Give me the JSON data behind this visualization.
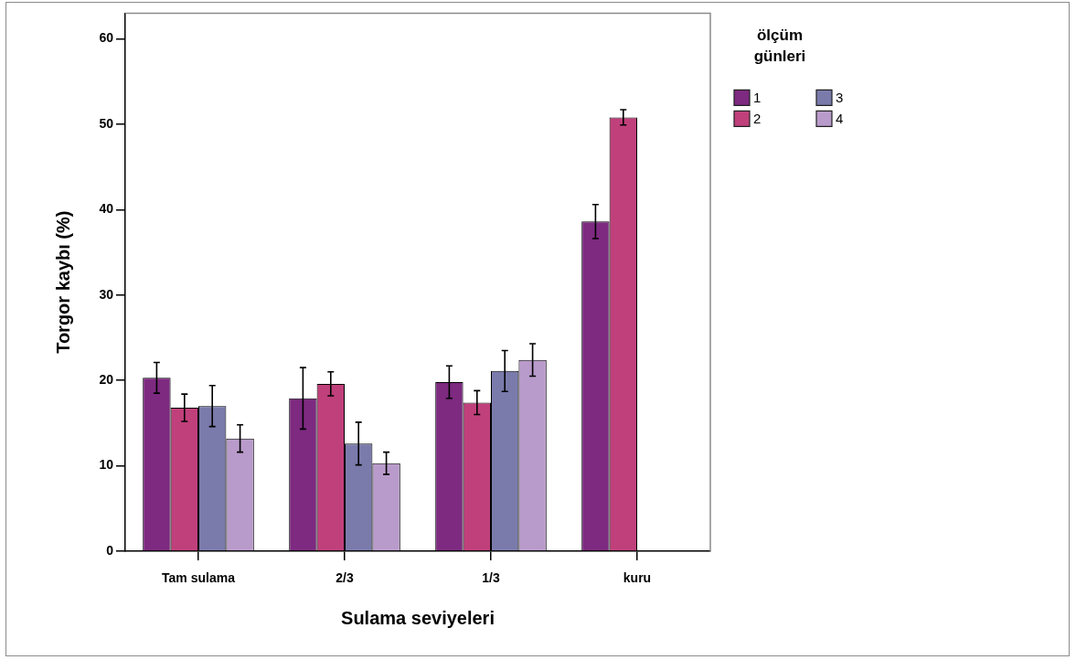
{
  "chart_data": {
    "type": "bar",
    "xlabel": "Sulama seviyeleri",
    "ylabel": "Torgor kaybı (%)",
    "legend_title": "ölçüm günleri",
    "categories": [
      "Tam sulama",
      "2/3",
      "1/3",
      "kuru"
    ],
    "series": [
      {
        "name": "1",
        "color": "#7d2a80",
        "values": [
          20.3,
          17.9,
          19.8,
          38.6
        ],
        "errors": [
          1.8,
          3.6,
          1.9,
          2.0
        ]
      },
      {
        "name": "2",
        "color": "#c0407b",
        "values": [
          16.8,
          19.6,
          17.4,
          50.8
        ],
        "errors": [
          1.6,
          1.4,
          1.4,
          0.9
        ]
      },
      {
        "name": "3",
        "color": "#7a7bab",
        "values": [
          17.0,
          12.6,
          21.1,
          null
        ],
        "errors": [
          2.4,
          2.5,
          2.4,
          null
        ]
      },
      {
        "name": "4",
        "color": "#b99bcb",
        "values": [
          13.2,
          10.3,
          22.4,
          null
        ],
        "errors": [
          1.6,
          1.3,
          1.9,
          null
        ]
      }
    ],
    "ylim": [
      0,
      63
    ],
    "yticks": [
      0,
      10,
      20,
      30,
      40,
      50,
      60
    ],
    "legend": "right"
  }
}
